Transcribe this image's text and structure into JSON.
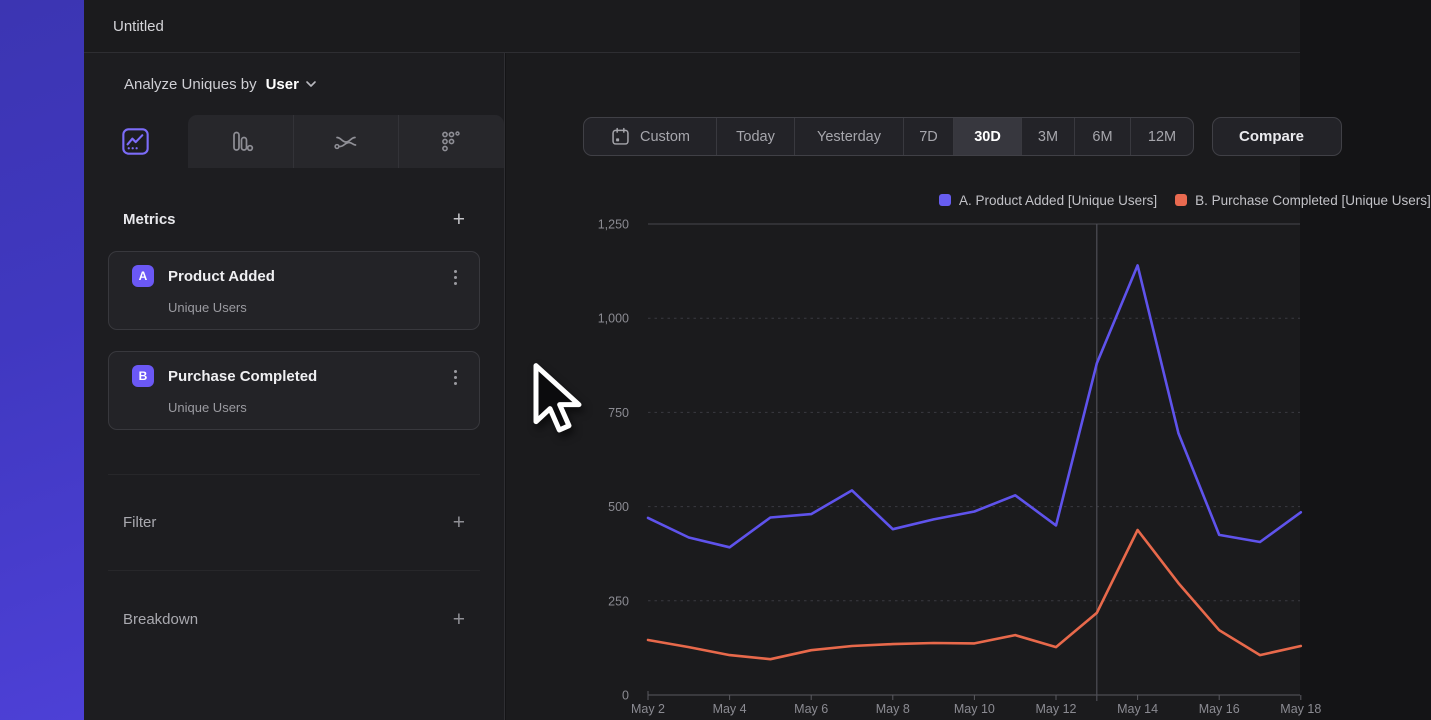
{
  "window": {
    "title": "Untitled"
  },
  "sidebar": {
    "analyze_label": "Analyze Uniques by",
    "analyze_value": "User",
    "tabs": [
      {
        "name": "insights-line-chart",
        "selected": true
      },
      {
        "name": "funnels-bar-chart",
        "selected": false
      },
      {
        "name": "flows",
        "selected": false
      },
      {
        "name": "retention-dots",
        "selected": false
      }
    ],
    "metrics": {
      "title": "Metrics",
      "add_label": "+",
      "items": [
        {
          "badge": "A",
          "name": "Product Added",
          "sub": "Unique Users"
        },
        {
          "badge": "B",
          "name": "Purchase Completed",
          "sub": "Unique Users"
        }
      ]
    },
    "sections": [
      {
        "label": "Filter",
        "add_label": "+"
      },
      {
        "label": "Breakdown",
        "add_label": "+"
      }
    ]
  },
  "toolbar": {
    "ranges": [
      "Custom",
      "Today",
      "Yesterday",
      "7D",
      "30D",
      "3M",
      "6M",
      "12M"
    ],
    "selected": "30D",
    "compare_label": "Compare"
  },
  "legend": [
    {
      "label": "A. Product Added [Unique Users]",
      "color": "#675df0"
    },
    {
      "label": "B. Purchase Completed [Unique Users]",
      "color": "#e96a50"
    }
  ],
  "chart_data": {
    "type": "line",
    "x": [
      "May 2",
      "May 3",
      "May 4",
      "May 5",
      "May 6",
      "May 7",
      "May 8",
      "May 9",
      "May 10",
      "May 11",
      "May 12",
      "May 13",
      "May 14",
      "May 15",
      "May 16",
      "May 17",
      "May 18"
    ],
    "series": [
      {
        "name": "A. Product Added [Unique Users]",
        "color": "#5f53ec",
        "values": [
          470,
          418,
          392,
          471,
          480,
          543,
          440,
          466,
          487,
          530,
          450,
          880,
          1140,
          695,
          425,
          406,
          485
        ]
      },
      {
        "name": "B. Purchase Completed [Unique Users]",
        "color": "#e8694b",
        "values": [
          146,
          127,
          106,
          95,
          119,
          130,
          135,
          138,
          137,
          159,
          127,
          218,
          438,
          297,
          172,
          106,
          130
        ]
      }
    ],
    "ylim": [
      0,
      1250
    ],
    "yticks": [
      0,
      250,
      500,
      750,
      1000,
      1250
    ],
    "ytick_labels": [
      "0",
      "250",
      "500",
      "750",
      "1,000",
      "1,250"
    ],
    "x_label_every": 2,
    "marker_index": 11,
    "grid": "horizontal-dashed",
    "legend_position": "top-right"
  },
  "colors": {
    "accent_purple": "#6c5cf6",
    "series_a": "#5f53ec",
    "series_b": "#e8694b",
    "rail_gradient_top": "#3c35b2",
    "rail_gradient_bottom": "#4d40d6",
    "background": "#1b1b1d"
  }
}
